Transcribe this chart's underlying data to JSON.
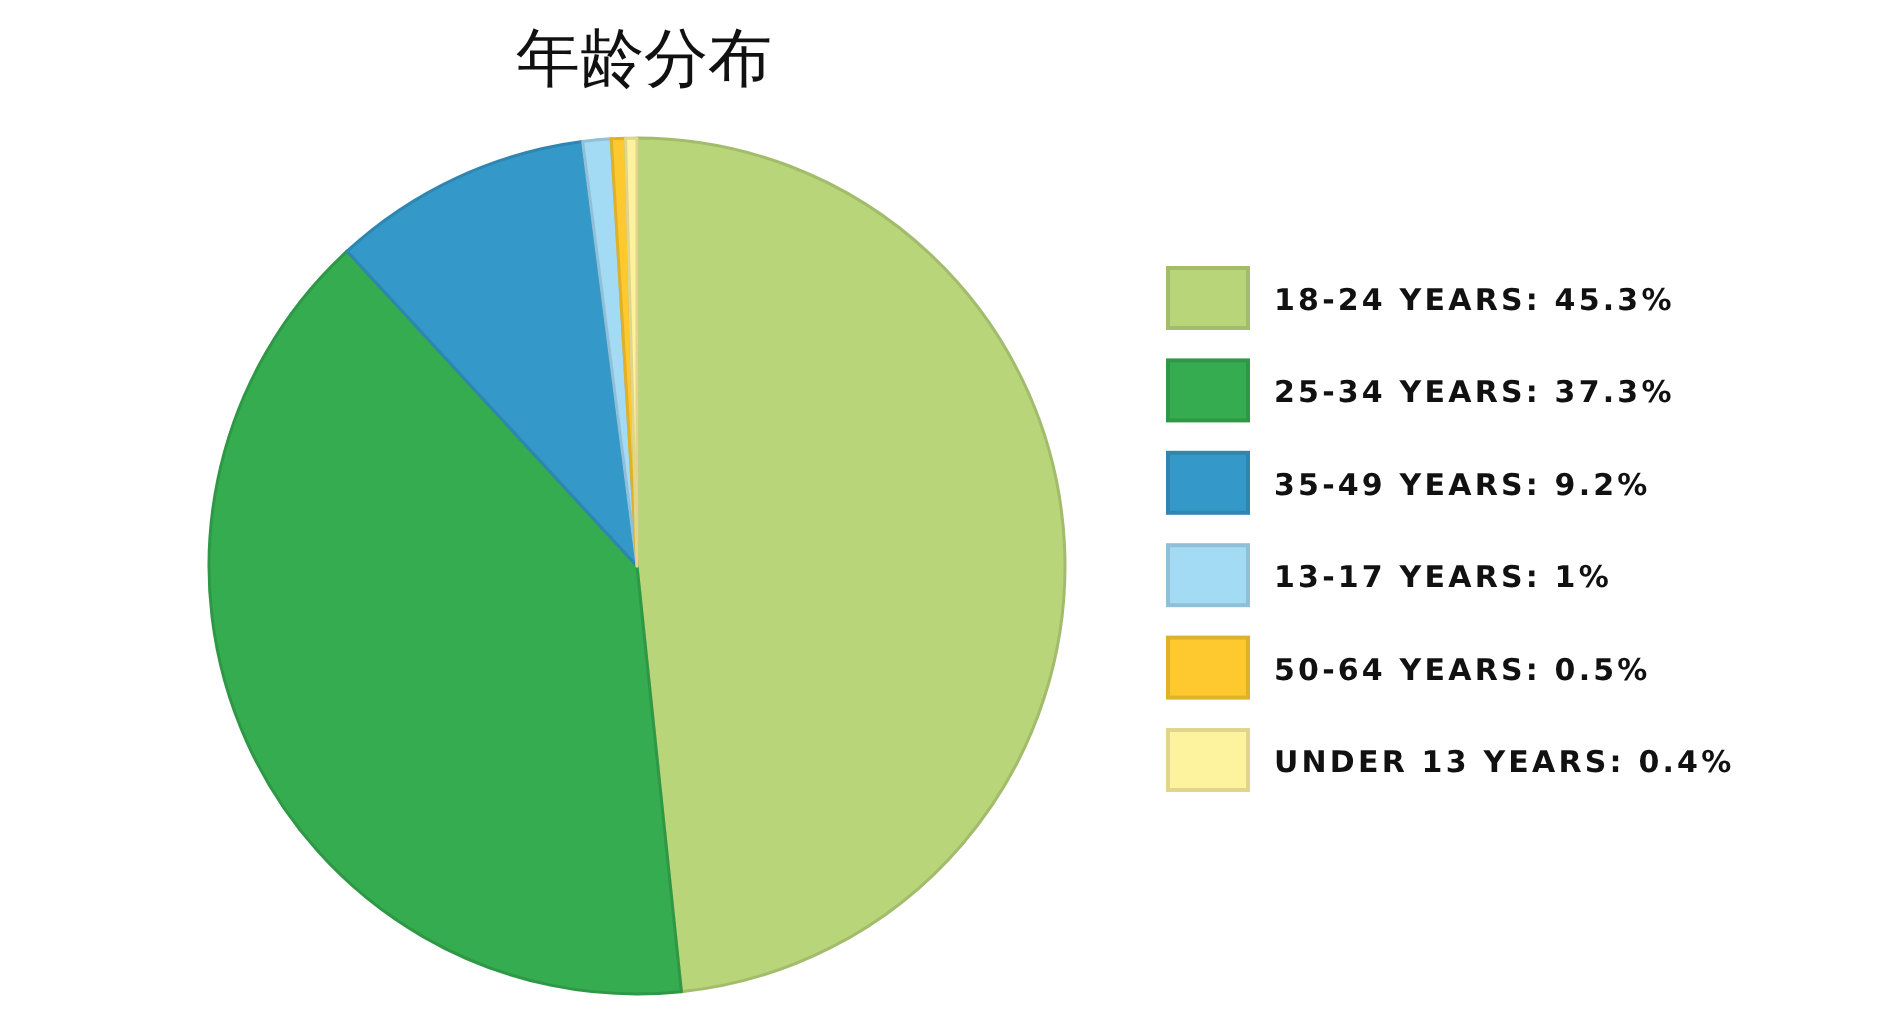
{
  "chart_data": {
    "type": "pie",
    "title": "年龄分布",
    "categories": [
      "18-24 YEARS: 45.3%",
      "25-34 YEARS: 37.3%",
      "35-49 YEARS: 9.2%",
      "13-17 YEARS: 1%",
      "50-64 YEARS: 0.5%",
      "UNDER 13 YEARS: 0.4%"
    ],
    "values": [
      45.3,
      37.3,
      9.2,
      1,
      0.5,
      0.4
    ],
    "colors": [
      "#b8d57a",
      "#35ac4f",
      "#3498c8",
      "#a3daf4",
      "#fdc92f",
      "#fdf29d"
    ],
    "legend": "right"
  }
}
